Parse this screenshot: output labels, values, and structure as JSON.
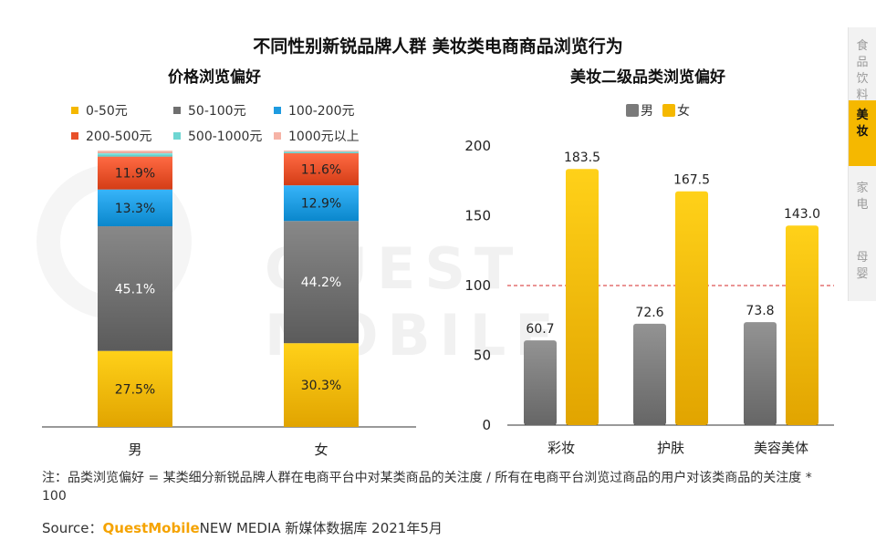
{
  "title": "不同性别新锐品牌人群 美妆类电商商品浏览行为",
  "side_nav": {
    "items": [
      {
        "label": "食品饮料",
        "active": false
      },
      {
        "label": "美妆",
        "active": true
      },
      {
        "label": "家电",
        "active": false
      },
      {
        "label": "母婴",
        "active": false
      }
    ]
  },
  "watermark_text": "QUEST MOBILE",
  "chart_data": [
    {
      "type": "bar",
      "stacked": true,
      "percent": true,
      "title": "价格浏览偏好",
      "categories": [
        "男",
        "女"
      ],
      "series": [
        {
          "name": "0-50元",
          "color": "#f5b800",
          "values": [
            27.5,
            30.3
          ],
          "labels": [
            "27.5%",
            "30.3%"
          ]
        },
        {
          "name": "50-100元",
          "color": "#6f6f6f",
          "values": [
            45.1,
            44.2
          ],
          "labels": [
            "45.1%",
            "44.2%"
          ]
        },
        {
          "name": "100-200元",
          "color": "#1e9be0",
          "values": [
            13.3,
            12.9
          ],
          "labels": [
            "13.3%",
            "12.9%"
          ]
        },
        {
          "name": "200-500元",
          "color": "#e8512a",
          "values": [
            11.9,
            11.6
          ],
          "labels": [
            "11.9%",
            "11.6%"
          ]
        },
        {
          "name": "500-1000元",
          "color": "#6ed6d2",
          "values": [
            1.2,
            0.6
          ],
          "labels": [
            "",
            ""
          ]
        },
        {
          "name": "1000元以上",
          "color": "#f6b3a6",
          "values": [
            1.0,
            0.4
          ],
          "labels": [
            "",
            ""
          ]
        }
      ],
      "ylim": [
        0,
        100
      ],
      "grid": false,
      "legend": "top"
    },
    {
      "type": "bar",
      "title": "美妆二级品类浏览偏好",
      "categories": [
        "彩妆",
        "护肤",
        "美容美体"
      ],
      "series": [
        {
          "name": "男",
          "color": "#7a7a7a",
          "values": [
            60.7,
            72.6,
            73.8
          ],
          "labels": [
            "60.7",
            "72.6",
            "73.8"
          ]
        },
        {
          "name": "女",
          "color": "#f5b800",
          "values": [
            183.5,
            167.5,
            143.0
          ],
          "labels": [
            "183.5",
            "167.5",
            "143.0"
          ]
        }
      ],
      "ylim": [
        0,
        200
      ],
      "yticks": [
        0,
        50,
        100,
        150,
        200
      ],
      "reference_line": 100,
      "grid": false,
      "legend": "top"
    }
  ],
  "note": "注：品类浏览偏好 = 某类细分新锐品牌人群在电商平台中对某类商品的关注度 / 所有在电商平台浏览过商品的用户对该类商品的关注度 * 100",
  "source": {
    "prefix": "Source：",
    "brand": "QuestMobile",
    "rest": "NEW MEDIA 新媒体数据库 2021年5月"
  }
}
